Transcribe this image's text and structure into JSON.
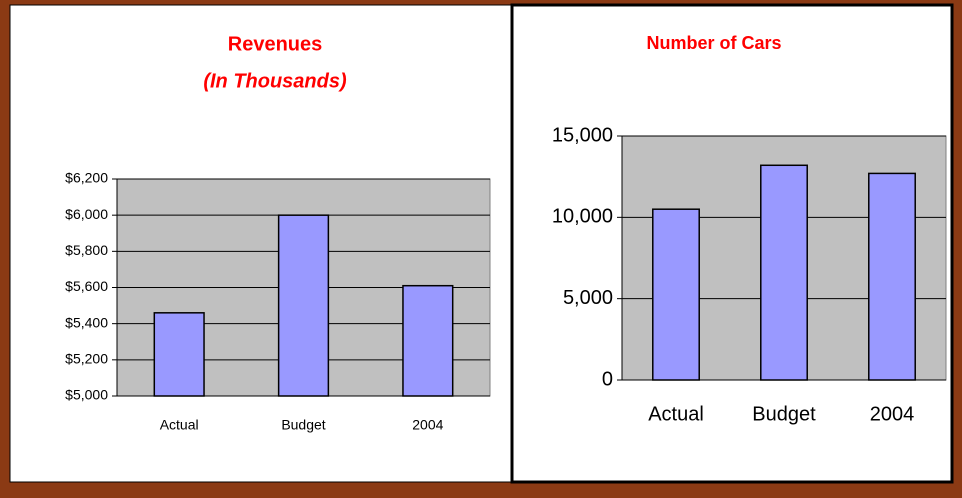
{
  "chart_data": [
    {
      "type": "bar",
      "title": "Revenues",
      "subtitle": "(In Thousands)",
      "categories": [
        "Actual",
        "Budget",
        "2004"
      ],
      "values": [
        5460,
        6000,
        5610
      ],
      "color": "#9999ff",
      "ylim": [
        5000,
        6200
      ],
      "yticks": [
        {
          "value": 5000,
          "label": "$5,000"
        },
        {
          "value": 5200,
          "label": "$5,200"
        },
        {
          "value": 5400,
          "label": "$5,400"
        },
        {
          "value": 5600,
          "label": "$5,600"
        },
        {
          "value": 5800,
          "label": "$5,800"
        },
        {
          "value": 6000,
          "label": "$6,000"
        },
        {
          "value": 6200,
          "label": "$6,200"
        }
      ],
      "grid": true
    },
    {
      "type": "bar",
      "title": "Number of Cars",
      "categories": [
        "Actual",
        "Budget",
        "2004"
      ],
      "values": [
        10500,
        13200,
        12700
      ],
      "color": "#9999ff",
      "ylim": [
        0,
        15000
      ],
      "yticks": [
        0,
        {
          "value": 5000,
          "label": "5,000"
        },
        {
          "value": 10000,
          "label": "10,000"
        },
        {
          "value": 15000,
          "label": "15,000"
        }
      ],
      "grid": true
    }
  ]
}
